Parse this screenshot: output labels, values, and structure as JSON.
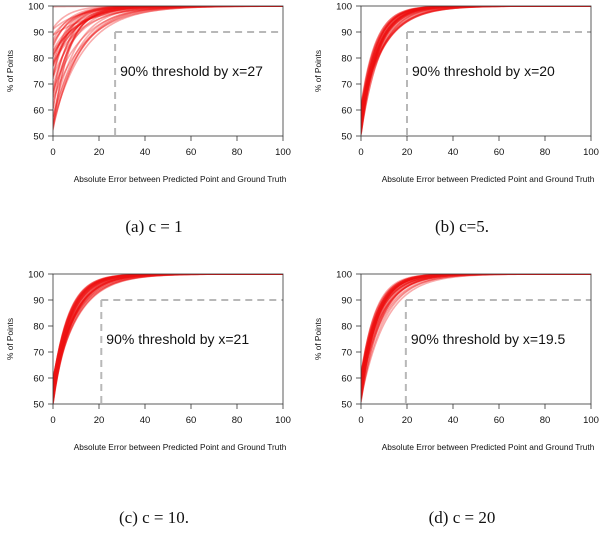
{
  "chart_data": [
    {
      "type": "line",
      "caption": "(a) c = 1",
      "xlabel": "Absolute Error between Predicted Point and Ground Truth",
      "ylabel": "% of Points",
      "xlim": [
        0,
        100
      ],
      "ylim": [
        50,
        100
      ],
      "xticks": [
        0,
        20,
        40,
        60,
        80,
        100
      ],
      "yticks": [
        50,
        60,
        70,
        80,
        90,
        100
      ],
      "threshold": {
        "x": 27,
        "y": 90,
        "label": "90% threshold by x=27"
      },
      "line_color": "#ee1111",
      "guide_color": "#b8b8b8",
      "series_count": 40,
      "curve_rate_range": [
        0.05,
        0.16
      ],
      "curve_y0_range": [
        50,
        100
      ]
    },
    {
      "type": "line",
      "caption": "(b) c=5.",
      "xlabel": "Absolute Error between Predicted Point and Ground Truth",
      "ylabel": "% of Points",
      "xlim": [
        0,
        100
      ],
      "ylim": [
        50,
        100
      ],
      "xticks": [
        0,
        20,
        40,
        60,
        80,
        100
      ],
      "yticks": [
        50,
        60,
        70,
        80,
        90,
        100
      ],
      "threshold": {
        "x": 20,
        "y": 90,
        "label": "90% threshold by x=20"
      },
      "line_color": "#ee1111",
      "guide_color": "#b8b8b8",
      "series_count": 40,
      "curve_rate_range": [
        0.09,
        0.16
      ],
      "curve_y0_range": [
        50,
        62
      ]
    },
    {
      "type": "line",
      "caption": "(c) c = 10.",
      "xlabel": "Absolute Error between Predicted Point and Ground Truth",
      "ylabel": "% of Points",
      "xlim": [
        0,
        100
      ],
      "ylim": [
        50,
        100
      ],
      "xticks": [
        0,
        20,
        40,
        60,
        80,
        100
      ],
      "yticks": [
        50,
        60,
        70,
        80,
        90,
        100
      ],
      "threshold": {
        "x": 21,
        "y": 90,
        "label": "90% threshold by x=21"
      },
      "line_color": "#ee1111",
      "guide_color": "#b8b8b8",
      "series_count": 40,
      "curve_rate_range": [
        0.09,
        0.15
      ],
      "curve_y0_range": [
        50,
        60
      ]
    },
    {
      "type": "line",
      "caption": "(d) c = 20",
      "xlabel": "Absolute Error between Predicted Point and Ground Truth",
      "ylabel": "% of Points",
      "xlim": [
        0,
        100
      ],
      "ylim": [
        50,
        100
      ],
      "xticks": [
        0,
        20,
        40,
        60,
        80,
        100
      ],
      "yticks": [
        50,
        60,
        70,
        80,
        90,
        100
      ],
      "threshold": {
        "x": 19.5,
        "y": 90,
        "label": "90% threshold by x=19.5"
      },
      "line_color": "#ee1111",
      "guide_color": "#b8b8b8",
      "series_count": 40,
      "curve_rate_range": [
        0.09,
        0.16
      ],
      "curve_y0_range": [
        50,
        62
      ]
    }
  ]
}
